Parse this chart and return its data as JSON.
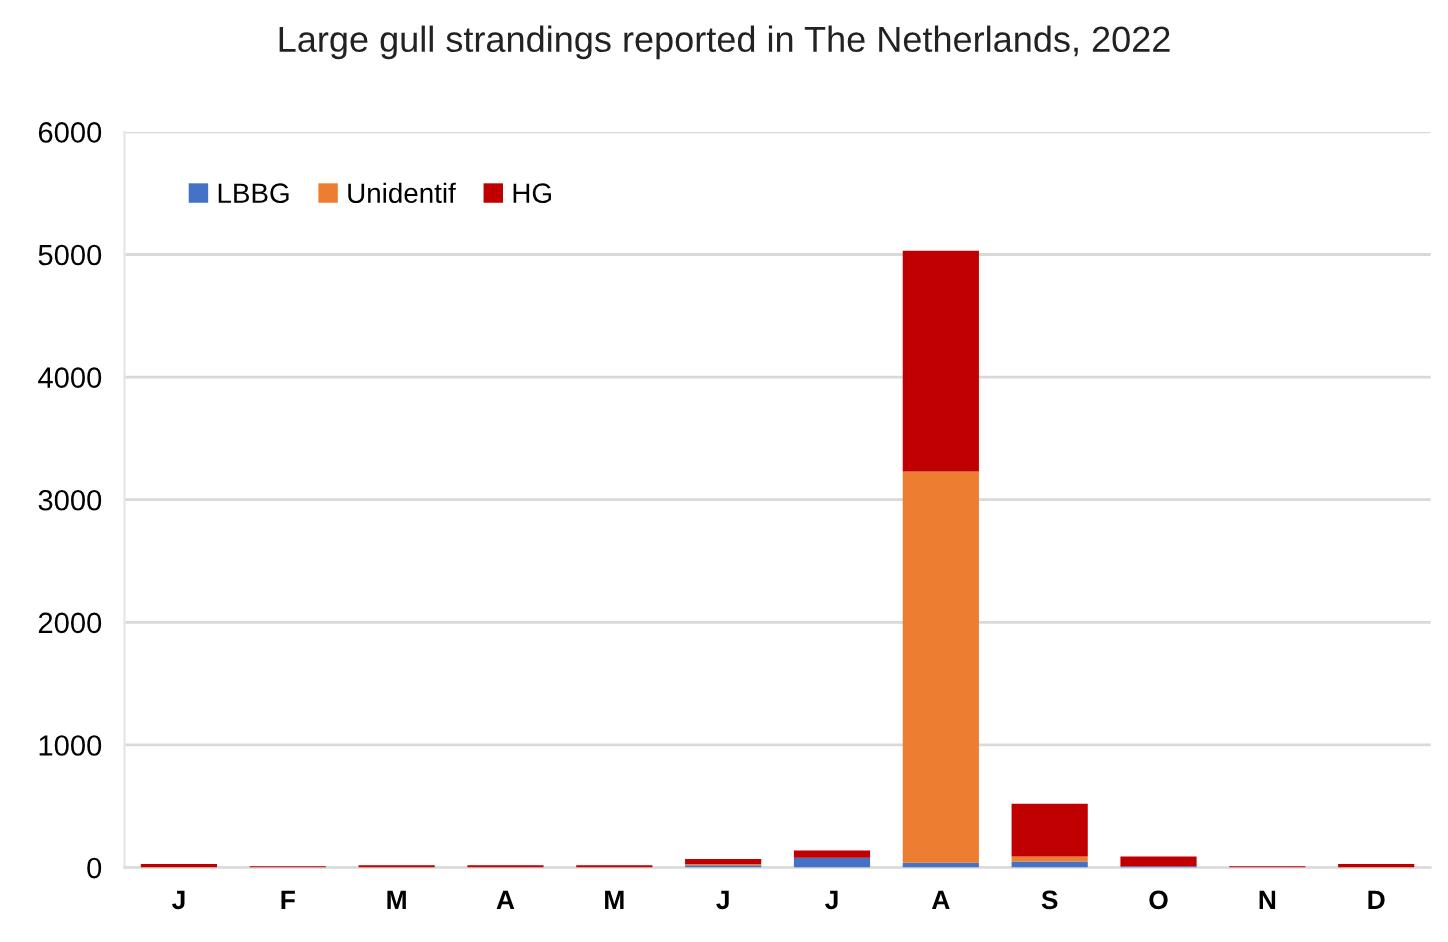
{
  "chart_data": {
    "type": "bar",
    "title": "Large gull strandings reported in The Netherlands, 2022",
    "categories": [
      "J",
      "F",
      "M",
      "A",
      "M",
      "J",
      "J",
      "A",
      "S",
      "O",
      "N",
      "D"
    ],
    "stacked": true,
    "series": [
      {
        "name": "LBBG",
        "color": "#4472c4",
        "values": [
          0,
          0,
          0,
          0,
          0,
          20,
          80,
          40,
          50,
          10,
          0,
          0
        ]
      },
      {
        "name": "Unidentif",
        "color": "#ed7d31",
        "values": [
          0,
          0,
          0,
          0,
          0,
          10,
          0,
          3190,
          40,
          0,
          0,
          0
        ]
      },
      {
        "name": "HG",
        "color": "#c00000",
        "values": [
          30,
          10,
          20,
          20,
          20,
          40,
          60,
          1800,
          430,
          80,
          10,
          30
        ]
      }
    ],
    "ylim": [
      0,
      6000
    ],
    "yticks": [
      0,
      1000,
      2000,
      3000,
      4000,
      5000,
      6000
    ],
    "grid": "y",
    "legend": "top left"
  }
}
